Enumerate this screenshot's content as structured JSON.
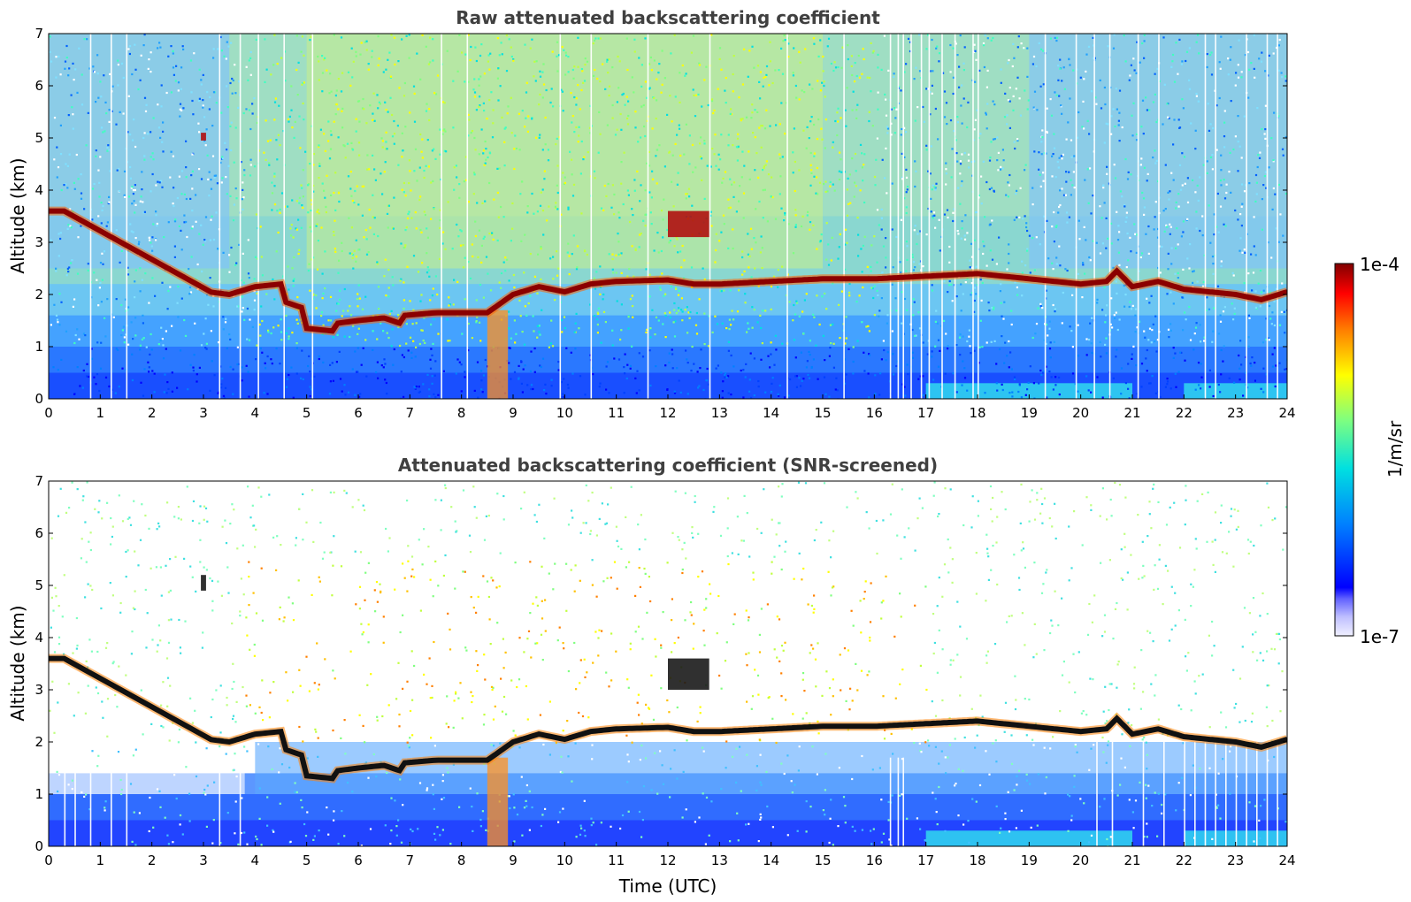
{
  "chart_data": [
    {
      "type": "heatmap",
      "title": "Raw attenuated backscattering coefficient",
      "xlabel": "",
      "ylabel": "Altitude (km)",
      "xlim": [
        0,
        24
      ],
      "ylim": [
        0,
        7
      ],
      "xticks": [
        "0",
        "1",
        "2",
        "3",
        "4",
        "5",
        "6",
        "7",
        "8",
        "9",
        "10",
        "11",
        "12",
        "13",
        "14",
        "15",
        "16",
        "17",
        "18",
        "19",
        "20",
        "21",
        "22",
        "23",
        "24"
      ],
      "yticks": [
        "0",
        "1",
        "2",
        "3",
        "4",
        "5",
        "6",
        "7"
      ],
      "screened": false,
      "layer_height_km": [
        [
          0.0,
          3.6
        ],
        [
          0.3,
          3.6
        ],
        [
          3.1,
          2.05
        ],
        [
          3.5,
          2.0
        ],
        [
          4.0,
          2.15
        ],
        [
          4.5,
          2.2
        ],
        [
          4.6,
          1.85
        ],
        [
          4.9,
          1.75
        ],
        [
          5.0,
          1.35
        ],
        [
          5.5,
          1.3
        ],
        [
          5.6,
          1.45
        ],
        [
          6.0,
          1.5
        ],
        [
          6.5,
          1.55
        ],
        [
          6.8,
          1.45
        ],
        [
          6.9,
          1.6
        ],
        [
          7.5,
          1.65
        ],
        [
          8.5,
          1.65
        ],
        [
          9.0,
          2.0
        ],
        [
          9.5,
          2.15
        ],
        [
          10.0,
          2.05
        ],
        [
          10.5,
          2.2
        ],
        [
          11.0,
          2.25
        ],
        [
          12.0,
          2.28
        ],
        [
          12.5,
          2.2
        ],
        [
          13.0,
          2.2
        ],
        [
          14.0,
          2.25
        ],
        [
          15.0,
          2.3
        ],
        [
          16.0,
          2.3
        ],
        [
          17.0,
          2.35
        ],
        [
          18.0,
          2.4
        ],
        [
          19.0,
          2.3
        ],
        [
          20.0,
          2.2
        ],
        [
          20.5,
          2.25
        ],
        [
          20.7,
          2.45
        ],
        [
          21.0,
          2.15
        ],
        [
          21.5,
          2.25
        ],
        [
          22.0,
          2.1
        ],
        [
          22.5,
          2.05
        ],
        [
          23.0,
          2.0
        ],
        [
          23.5,
          1.9
        ],
        [
          24.0,
          2.05
        ]
      ],
      "elevated_echoes": [
        {
          "time": [
            2.95,
            3.05
          ],
          "altitude_km": [
            4.95,
            5.1
          ]
        },
        {
          "time": [
            12.0,
            12.8
          ],
          "altitude_km": [
            3.1,
            3.6
          ]
        },
        {
          "time": [
            8.5,
            8.9
          ],
          "altitude_km": [
            0.0,
            1.7
          ]
        }
      ],
      "bad_profile_times": [
        0.8,
        1.2,
        1.5,
        3.3,
        3.7,
        4.05,
        4.55,
        5.1,
        7.6,
        8.1,
        9.9,
        10.5,
        11.6,
        12.8,
        14.3,
        15.4,
        16.3,
        16.45,
        16.55,
        16.7,
        16.9,
        17.05,
        17.3,
        17.55,
        17.9,
        18.0,
        19.3,
        19.9,
        20.25,
        20.55,
        21.1,
        21.5,
        22.4,
        22.6,
        23.2,
        23.6,
        23.8
      ]
    },
    {
      "type": "heatmap",
      "title": "Attenuated backscattering coefficient (SNR-screened)",
      "xlabel": "Time (UTC)",
      "ylabel": "Altitude (km)",
      "xlim": [
        0,
        24
      ],
      "ylim": [
        0,
        7
      ],
      "xticks": [
        "0",
        "1",
        "2",
        "3",
        "4",
        "5",
        "6",
        "7",
        "8",
        "9",
        "10",
        "11",
        "12",
        "13",
        "14",
        "15",
        "16",
        "17",
        "18",
        "19",
        "20",
        "21",
        "22",
        "23",
        "24"
      ],
      "yticks": [
        "0",
        "1",
        "2",
        "3",
        "4",
        "5",
        "6",
        "7"
      ],
      "screened": true,
      "layer_height_km": [
        [
          0.0,
          3.6
        ],
        [
          0.3,
          3.6
        ],
        [
          3.1,
          2.05
        ],
        [
          3.5,
          2.0
        ],
        [
          4.0,
          2.15
        ],
        [
          4.5,
          2.2
        ],
        [
          4.6,
          1.85
        ],
        [
          4.9,
          1.75
        ],
        [
          5.0,
          1.35
        ],
        [
          5.5,
          1.3
        ],
        [
          5.6,
          1.45
        ],
        [
          6.0,
          1.5
        ],
        [
          6.5,
          1.55
        ],
        [
          6.8,
          1.45
        ],
        [
          6.9,
          1.6
        ],
        [
          7.5,
          1.65
        ],
        [
          8.5,
          1.65
        ],
        [
          9.0,
          2.0
        ],
        [
          9.5,
          2.15
        ],
        [
          10.0,
          2.05
        ],
        [
          10.5,
          2.2
        ],
        [
          11.0,
          2.25
        ],
        [
          12.0,
          2.28
        ],
        [
          12.5,
          2.2
        ],
        [
          13.0,
          2.2
        ],
        [
          14.0,
          2.25
        ],
        [
          15.0,
          2.3
        ],
        [
          16.0,
          2.3
        ],
        [
          17.0,
          2.35
        ],
        [
          18.0,
          2.4
        ],
        [
          19.0,
          2.3
        ],
        [
          20.0,
          2.2
        ],
        [
          20.5,
          2.25
        ],
        [
          20.7,
          2.45
        ],
        [
          21.0,
          2.15
        ],
        [
          21.5,
          2.25
        ],
        [
          22.0,
          2.1
        ],
        [
          22.5,
          2.05
        ],
        [
          23.0,
          2.0
        ],
        [
          23.5,
          1.9
        ],
        [
          24.0,
          2.05
        ]
      ],
      "elevated_echoes": [
        {
          "time": [
            2.95,
            3.05
          ],
          "altitude_km": [
            4.9,
            5.2
          ]
        },
        {
          "time": [
            12.0,
            12.8
          ],
          "altitude_km": [
            3.0,
            3.6
          ]
        },
        {
          "time": [
            8.5,
            8.9
          ],
          "altitude_km": [
            0.0,
            1.7
          ]
        }
      ],
      "bad_profile_times": [
        0.3,
        0.5,
        0.8,
        1.2,
        1.5,
        3.3,
        3.7,
        16.3,
        16.45,
        16.55,
        20.3,
        20.6,
        21.2,
        21.6,
        22.0,
        22.2,
        22.4,
        22.6,
        22.8,
        23.0,
        23.2,
        23.4,
        23.6,
        23.8
      ]
    }
  ],
  "colorbar": {
    "min_label": "1e-7",
    "max_label": "1e-4",
    "unit": "1/m/sr",
    "colormap": "jet"
  }
}
